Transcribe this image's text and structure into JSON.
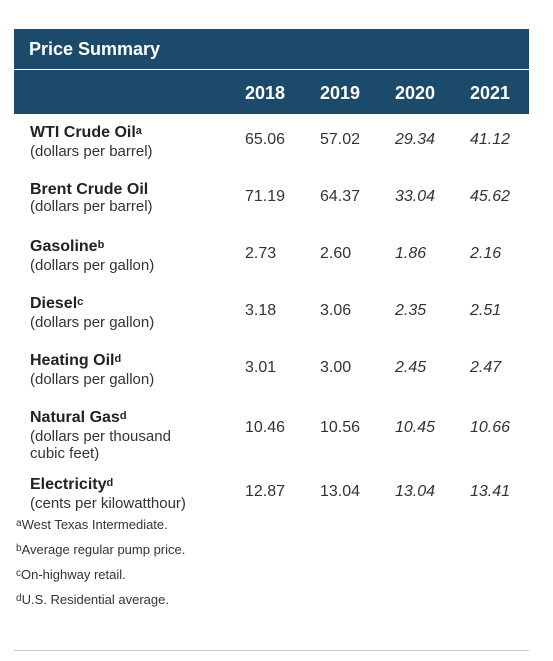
{
  "title": "Price Summary",
  "years": [
    "2018",
    "2019",
    "2020",
    "2021"
  ],
  "rows": [
    {
      "name": "WTI Crude Oil",
      "sup": "a",
      "unit": "(dollars per barrel)",
      "values": [
        "65.06",
        "57.02",
        "29.34",
        "41.12"
      ]
    },
    {
      "name": "Brent Crude Oil",
      "sup": "",
      "unit": "(dollars per barrel)",
      "values": [
        "71.19",
        "64.37",
        "33.04",
        "45.62"
      ]
    },
    {
      "name": "Gasoline",
      "sup": "b",
      "unit": "(dollars per gallon)",
      "values": [
        "2.73",
        "2.60",
        "1.86",
        "2.16"
      ]
    },
    {
      "name": "Diesel",
      "sup": "c",
      "unit": "(dollars per gallon)",
      "values": [
        "3.18",
        "3.06",
        "2.35",
        "2.51"
      ]
    },
    {
      "name": "Heating Oil",
      "sup": "d",
      "unit": "(dollars per gallon)",
      "values": [
        "3.01",
        "3.00",
        "2.45",
        "2.47"
      ]
    },
    {
      "name": "Natural Gas",
      "sup": "d",
      "unit": "(dollars per thousand cubic feet)",
      "values": [
        "10.46",
        "10.56",
        "10.45",
        "10.66"
      ]
    },
    {
      "name": "Electricity",
      "sup": "d",
      "unit": "(cents per kilowatthour)",
      "values": [
        "12.87",
        "13.04",
        "13.04",
        "13.41"
      ]
    }
  ],
  "footnotes": [
    {
      "mark": "a",
      "text": "West Texas Intermediate."
    },
    {
      "mark": "b",
      "text": "Average regular pump price."
    },
    {
      "mark": "c",
      "text": "On-highway retail."
    },
    {
      "mark": "d",
      "text": "U.S. Residential average."
    }
  ],
  "colors": {
    "header_bg": "#1b4a6b",
    "header_text": "#ffffff"
  }
}
